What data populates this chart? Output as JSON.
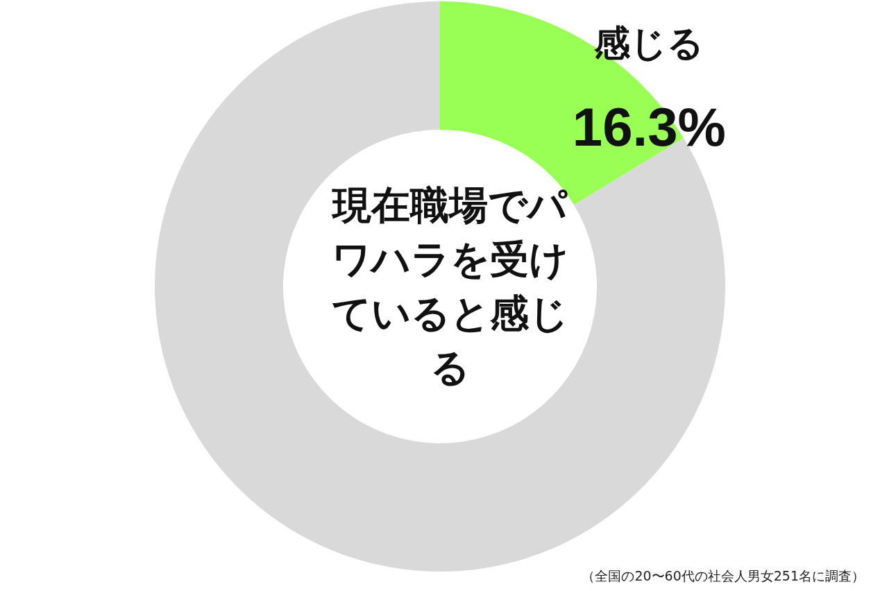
{
  "chart_data": {
    "type": "donut",
    "title": "現在職場でパワハラを受けていると感じる",
    "categories": [
      "感じる",
      null
    ],
    "values": [
      16.3,
      83.7
    ],
    "colors": [
      "#99ff55",
      "#d9d9d9"
    ],
    "value_labels": [
      "16.3%",
      null
    ],
    "legend": false,
    "annotations": [
      "（全国の20〜60代の社会人男女251名に調査）"
    ]
  }
}
